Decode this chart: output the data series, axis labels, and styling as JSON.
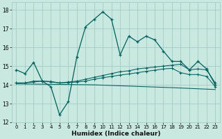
{
  "xlabel": "Humidex (Indice chaleur)",
  "bg_color": "#c8e8e0",
  "grid_color": "#a8d0c8",
  "line_color": "#006060",
  "xlim": [
    -0.5,
    23.5
  ],
  "ylim": [
    12,
    18.4
  ],
  "yticks": [
    12,
    13,
    14,
    15,
    16,
    17,
    18
  ],
  "xticks": [
    0,
    1,
    2,
    3,
    4,
    5,
    6,
    7,
    8,
    9,
    10,
    11,
    12,
    13,
    14,
    15,
    16,
    17,
    18,
    19,
    20,
    21,
    22,
    23
  ],
  "line1_y": [
    14.8,
    14.6,
    15.2,
    14.2,
    13.9,
    12.4,
    13.1,
    15.5,
    17.1,
    17.5,
    17.9,
    17.5,
    15.6,
    16.6,
    16.3,
    16.6,
    16.4,
    15.8,
    15.25,
    15.25,
    14.8,
    15.25,
    14.85,
    14.0
  ],
  "line2_y": [
    14.1,
    14.1,
    14.2,
    14.2,
    14.15,
    14.1,
    14.15,
    14.2,
    14.3,
    14.4,
    14.5,
    14.6,
    14.7,
    14.75,
    14.85,
    14.9,
    14.95,
    15.0,
    15.05,
    15.1,
    14.8,
    14.85,
    14.8,
    14.1
  ],
  "line3_y": [
    14.1,
    14.1,
    14.15,
    14.2,
    14.18,
    14.1,
    14.12,
    14.15,
    14.2,
    14.3,
    14.38,
    14.45,
    14.52,
    14.58,
    14.65,
    14.72,
    14.78,
    14.85,
    14.88,
    14.65,
    14.55,
    14.55,
    14.45,
    13.9
  ],
  "line4_x": [
    0,
    9,
    18,
    23
  ],
  "line4_y": [
    14.05,
    14.0,
    13.85,
    13.75
  ]
}
